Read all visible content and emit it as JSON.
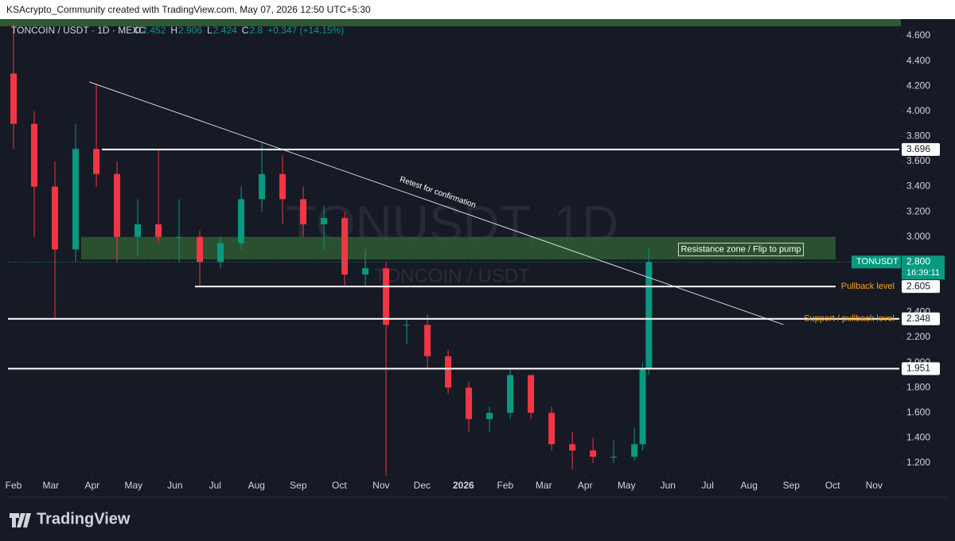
{
  "header": {
    "credit": "KSAcrypto_Community created with TradingView.com, May 07, 2026 12:50 UTC+5:30"
  },
  "chart_data": {
    "type": "candlestick",
    "symbol_title": "TONCOIN / USDT · 1D · MEXC",
    "ohlc": [
      {
        "label": "O",
        "value": 2.452
      },
      {
        "label": "H",
        "value": 2.906
      },
      {
        "label": "L",
        "value": 2.424
      },
      {
        "label": "C",
        "value": 2.8
      }
    ],
    "change": "+0.347 (+14.15%)",
    "watermark": "TONUSDT, 1D",
    "watermark_sub": "TONCOIN / USDT",
    "up_color": "#089981",
    "down_color": "#f23645",
    "candles": {
      "x": [
        0,
        0.5,
        1,
        1.5,
        2,
        2.5,
        3,
        3.5,
        4,
        4.5,
        5,
        5.5,
        6,
        6.5,
        7,
        7.5,
        8,
        8.5,
        9,
        9.5,
        10,
        10.5,
        11,
        11.5,
        12,
        12.5,
        13,
        13.5,
        14,
        14.5,
        15,
        15.2,
        15.35
      ],
      "open": [
        4.3,
        3.9,
        3.4,
        2.9,
        3.7,
        3.5,
        3.0,
        3.1,
        3.0,
        3.0,
        2.8,
        2.95,
        3.3,
        3.5,
        3.3,
        3.1,
        3.15,
        2.7,
        2.75,
        2.3,
        2.3,
        2.05,
        1.8,
        1.55,
        1.6,
        1.9,
        1.6,
        1.35,
        1.3,
        1.25,
        1.25,
        1.35,
        1.95
      ],
      "high": [
        4.7,
        4.0,
        3.6,
        3.9,
        4.22,
        3.6,
        3.3,
        3.7,
        3.3,
        3.05,
        3.0,
        3.4,
        3.75,
        3.65,
        3.4,
        3.25,
        3.2,
        2.9,
        2.8,
        2.35,
        2.38,
        2.1,
        1.85,
        1.65,
        1.95,
        1.9,
        1.65,
        1.45,
        1.4,
        1.38,
        1.48,
        2.0,
        2.906
      ],
      "low": [
        3.7,
        3.0,
        2.35,
        2.8,
        3.4,
        2.8,
        2.85,
        2.95,
        2.8,
        2.6,
        2.75,
        2.9,
        3.2,
        3.1,
        3.0,
        2.9,
        2.6,
        2.6,
        1.1,
        2.15,
        1.95,
        1.75,
        1.45,
        1.45,
        1.55,
        1.55,
        1.3,
        1.15,
        1.2,
        1.2,
        1.22,
        1.3,
        1.9
      ],
      "close": [
        3.9,
        3.4,
        2.9,
        3.7,
        3.5,
        3.0,
        3.1,
        3.0,
        3.0,
        2.8,
        2.95,
        3.3,
        3.5,
        3.3,
        3.1,
        3.15,
        2.7,
        2.75,
        2.3,
        2.3,
        2.05,
        1.8,
        1.55,
        1.6,
        1.9,
        1.6,
        1.35,
        1.3,
        1.25,
        1.25,
        1.35,
        1.95,
        2.8
      ]
    },
    "xlim": [
      -0.135,
      21.4
    ],
    "xticks": [
      {
        "value": 0,
        "label": "Feb"
      },
      {
        "value": 0.9,
        "label": "Mar"
      },
      {
        "value": 1.9,
        "label": "Apr"
      },
      {
        "value": 2.9,
        "label": "May"
      },
      {
        "value": 3.9,
        "label": "Jun"
      },
      {
        "value": 4.87,
        "label": "Jul"
      },
      {
        "value": 5.87,
        "label": "Aug"
      },
      {
        "value": 6.88,
        "label": "Sep"
      },
      {
        "value": 7.87,
        "label": "Oct"
      },
      {
        "value": 8.88,
        "label": "Nov"
      },
      {
        "value": 9.87,
        "label": "Dec"
      },
      {
        "value": 10.87,
        "label": "2026"
      },
      {
        "value": 11.88,
        "label": "Feb"
      },
      {
        "value": 12.81,
        "label": "Mar"
      },
      {
        "value": 13.81,
        "label": "Apr"
      },
      {
        "value": 14.81,
        "label": "May"
      },
      {
        "value": 15.81,
        "label": "Jun"
      },
      {
        "value": 16.77,
        "label": "Jul"
      },
      {
        "value": 17.77,
        "label": "Aug"
      },
      {
        "value": 18.79,
        "label": "Sep"
      },
      {
        "value": 19.79,
        "label": "Oct"
      },
      {
        "value": 20.79,
        "label": "Nov"
      }
    ],
    "ylim": [
      1.105,
      4.727
    ],
    "yticks": [
      {
        "value": 1.2,
        "label": "1.200"
      },
      {
        "value": 1.4,
        "label": "1.400"
      },
      {
        "value": 1.6,
        "label": "1.600"
      },
      {
        "value": 1.8,
        "label": "1.800"
      },
      {
        "value": 2.0,
        "label": "2.000"
      },
      {
        "value": 2.2,
        "label": "2.200"
      },
      {
        "value": 2.4,
        "label": "2.400"
      },
      {
        "value": 3.0,
        "label": "3.000"
      },
      {
        "value": 3.2,
        "label": "3.200"
      },
      {
        "value": 3.4,
        "label": "3.400"
      },
      {
        "value": 3.6,
        "label": "3.600"
      },
      {
        "value": 3.8,
        "label": "3.800"
      },
      {
        "value": 4.0,
        "label": "4.000"
      },
      {
        "value": 4.2,
        "label": "4.200"
      },
      {
        "value": 4.4,
        "label": "4.400"
      },
      {
        "value": 4.6,
        "label": "4.600"
      }
    ],
    "levels": [
      {
        "value": 3.696
      },
      {
        "value": 2.605,
        "note": "Pullback level"
      },
      {
        "value": 2.348,
        "note": "Support / pullback level"
      },
      {
        "value": 1.951
      }
    ],
    "zone": {
      "low": 2.82,
      "high": 3.0,
      "label": "Resistance zone / Flip to pump"
    },
    "trendline": {
      "x": [
        1.83,
        18.6
      ],
      "y": [
        4.233,
        2.302
      ],
      "label": "Retest for confirmation"
    },
    "last_price": {
      "symbol": "TONUSDT",
      "value": 2.8,
      "label": "2.800",
      "countdown": "16:39:11"
    }
  },
  "footer": {
    "brand": "TradingView"
  }
}
